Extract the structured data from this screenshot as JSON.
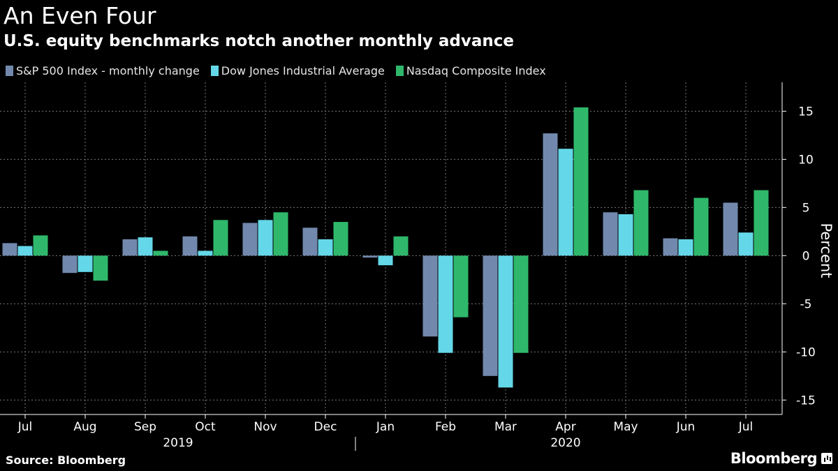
{
  "header": {
    "title": "An Even Four",
    "subtitle": "U.S. equity benchmarks notch another monthly advance"
  },
  "footer": {
    "source": "Source: Bloomberg",
    "brand": "Bloomberg"
  },
  "colors": {
    "background": "#000000",
    "sp500": "#7289ad",
    "dow": "#64d8e8",
    "nasdaq": "#2fb86b",
    "grid": "#7a7a7a",
    "text": "#ffffff"
  },
  "chart_data": {
    "type": "bar",
    "title": "An Even Four",
    "subtitle": "U.S. equity benchmarks notch another monthly advance",
    "xlabel": "",
    "ylabel": "Percent",
    "ylim": [
      -16.5,
      18
    ],
    "yticks": [
      15,
      10,
      5,
      0,
      -5,
      -10,
      -15
    ],
    "grid": true,
    "legend_position": "top-left",
    "y_axis_side": "right",
    "categories": [
      "Jul",
      "Aug",
      "Sep",
      "Oct",
      "Nov",
      "Dec",
      "Jan",
      "Feb",
      "Mar",
      "Apr",
      "May",
      "Jun",
      "Jul"
    ],
    "year_labels": [
      {
        "label": "2019",
        "categories": [
          "Jul",
          "Aug",
          "Sep",
          "Oct",
          "Nov",
          "Dec"
        ]
      },
      {
        "label": "2020",
        "categories": [
          "Jan",
          "Feb",
          "Mar",
          "Apr",
          "May",
          "Jun",
          "Jul"
        ]
      }
    ],
    "series": [
      {
        "name": "S&P 500 Index - monthly change",
        "color": "#7289ad",
        "values": [
          1.3,
          -1.8,
          1.7,
          2.0,
          3.4,
          2.9,
          -0.2,
          -8.4,
          -12.5,
          12.7,
          4.5,
          1.8,
          5.5
        ]
      },
      {
        "name": "Dow Jones Industrial Average",
        "color": "#64d8e8",
        "values": [
          1.0,
          -1.7,
          1.9,
          0.5,
          3.7,
          1.7,
          -1.0,
          -10.1,
          -13.7,
          11.1,
          4.3,
          1.7,
          2.4
        ]
      },
      {
        "name": "Nasdaq Composite Index",
        "color": "#2fb86b",
        "values": [
          2.1,
          -2.6,
          0.5,
          3.7,
          4.5,
          3.5,
          2.0,
          -6.4,
          -10.1,
          15.4,
          6.8,
          6.0,
          6.8
        ]
      }
    ]
  }
}
